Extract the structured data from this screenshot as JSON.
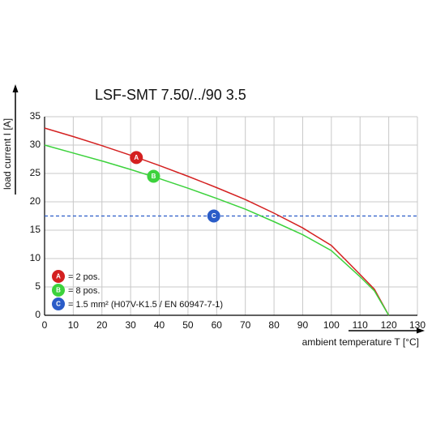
{
  "chart_data": {
    "type": "line",
    "title": "LSF-SMT 7.50/../90 3.5",
    "y_label": "load current I [A]",
    "x_label": "ambient temperature T [°C]",
    "xlim": [
      0,
      130
    ],
    "ylim": [
      0,
      35
    ],
    "xticks": [
      0,
      10,
      20,
      30,
      40,
      50,
      60,
      70,
      80,
      90,
      100,
      110,
      120,
      130
    ],
    "yticks": [
      0,
      5,
      10,
      15,
      20,
      25,
      30,
      35
    ],
    "grid": true,
    "series": [
      {
        "name": "= 2 pos.",
        "marker": "A",
        "color": "#d42020",
        "x": [
          0,
          10,
          20,
          30,
          40,
          50,
          60,
          70,
          80,
          90,
          100,
          110,
          115,
          120
        ],
        "values": [
          33,
          31.5,
          29.9,
          28.2,
          26.4,
          24.5,
          22.5,
          20.4,
          18.0,
          15.4,
          12.3,
          7.2,
          4.6,
          0
        ],
        "marker_x": 32,
        "marker_y": 27.8
      },
      {
        "name": "= 8 pos.",
        "marker": "B",
        "color": "#3cd23c",
        "x": [
          0,
          10,
          20,
          30,
          40,
          50,
          60,
          70,
          80,
          90,
          100,
          110,
          115,
          120
        ],
        "values": [
          30,
          28.6,
          27.2,
          25.7,
          24.1,
          22.4,
          20.6,
          18.7,
          16.5,
          14.2,
          11.4,
          6.8,
          4.3,
          0
        ],
        "marker_x": 38,
        "marker_y": 24.5
      }
    ],
    "reference": {
      "name": "= 1.5 mm² (H07V-K1.5 / EN 60947-7-1)",
      "marker": "C",
      "color": "#2a5cc8",
      "value": 17.5,
      "marker_x": 59
    }
  }
}
